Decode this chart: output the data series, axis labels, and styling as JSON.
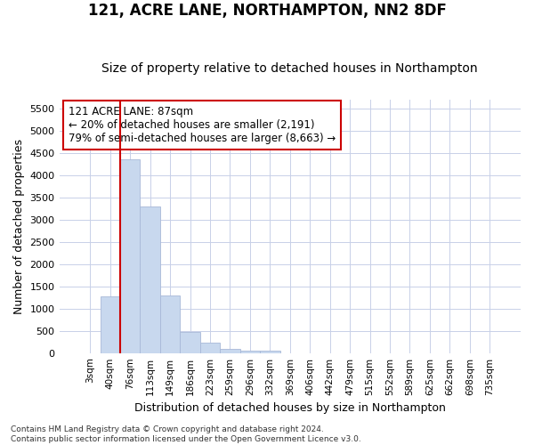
{
  "title": "121, ACRE LANE, NORTHAMPTON, NN2 8DF",
  "subtitle": "Size of property relative to detached houses in Northampton",
  "xlabel": "Distribution of detached houses by size in Northampton",
  "ylabel": "Number of detached properties",
  "bar_labels": [
    "3sqm",
    "40sqm",
    "76sqm",
    "113sqm",
    "149sqm",
    "186sqm",
    "223sqm",
    "259sqm",
    "296sqm",
    "332sqm",
    "369sqm",
    "406sqm",
    "442sqm",
    "479sqm",
    "515sqm",
    "552sqm",
    "589sqm",
    "625sqm",
    "662sqm",
    "698sqm",
    "735sqm"
  ],
  "bar_values": [
    0,
    1270,
    4350,
    3300,
    1290,
    480,
    235,
    100,
    60,
    60,
    0,
    0,
    0,
    0,
    0,
    0,
    0,
    0,
    0,
    0,
    0
  ],
  "bar_color": "#c8d8ee",
  "bar_edge_color": "#a8b8d8",
  "vline_color": "#cc0000",
  "vline_x_index": 2,
  "annotation_text": "121 ACRE LANE: 87sqm\n← 20% of detached houses are smaller (2,191)\n79% of semi-detached houses are larger (8,663) →",
  "annotation_box_color": "#ffffff",
  "annotation_box_edge": "#cc0000",
  "ylim": [
    0,
    5700
  ],
  "yticks": [
    0,
    500,
    1000,
    1500,
    2000,
    2500,
    3000,
    3500,
    4000,
    4500,
    5000,
    5500
  ],
  "footer_line1": "Contains HM Land Registry data © Crown copyright and database right 2024.",
  "footer_line2": "Contains public sector information licensed under the Open Government Licence v3.0.",
  "background_color": "#ffffff",
  "grid_color": "#c8d0e8"
}
